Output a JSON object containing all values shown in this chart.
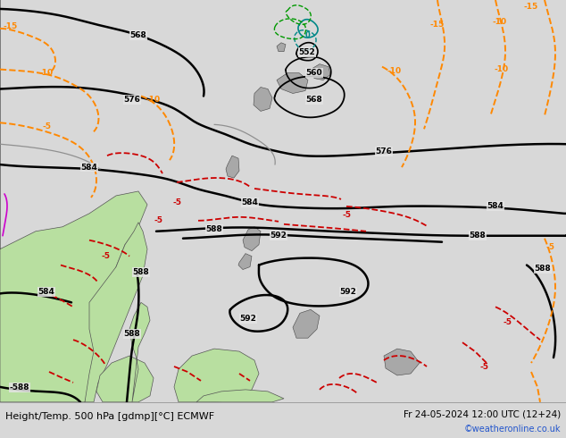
{
  "title_left": "Height/Temp. 500 hPa [gdmp][°C] ECMWF",
  "title_right": "Fr 24-05-2024 12:00 UTC (12+24)",
  "watermark": "©weatheronline.co.uk",
  "background_map": "#e4e4e4",
  "land_green": "#b8dfa0",
  "land_gray": "#a8a8a8",
  "black": "#000000",
  "orange": "#ff8800",
  "red": "#cc0000",
  "teal": "#008888",
  "green_c": "#009900",
  "magenta": "#cc00cc",
  "gray_c": "#909090",
  "bottom_bg": "#d8d8d8",
  "blue_link": "#2255cc",
  "fig_w": 6.34,
  "fig_h": 4.9,
  "dpi": 100
}
